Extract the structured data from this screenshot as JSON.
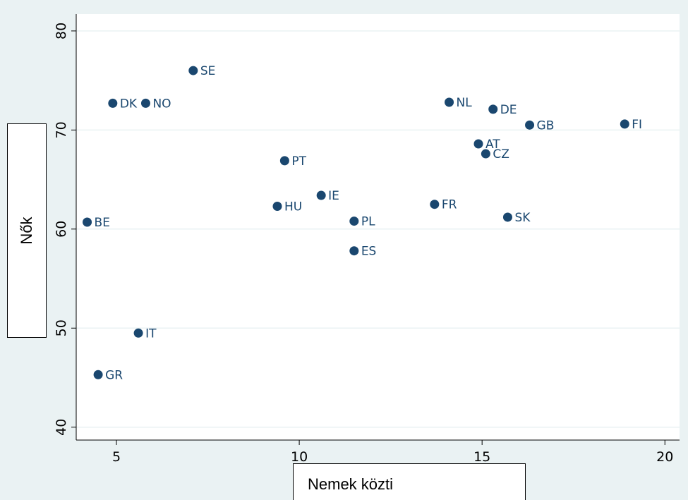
{
  "chart_data": {
    "type": "scatter",
    "xlabel": "Nemek közti",
    "ylabel": "Nők",
    "xlim": [
      3.9,
      20.4
    ],
    "ylim": [
      38.7,
      81.7
    ],
    "xticks": [
      5,
      10,
      15,
      20
    ],
    "yticks": [
      40,
      50,
      60,
      70,
      80
    ],
    "grid": true,
    "colors": {
      "outer_background": "#eaf2f3",
      "plot_background": "#ffffff",
      "gridline": "#eaf2f3",
      "marker": "#1a476f",
      "text": "#000000"
    },
    "points": [
      {
        "label": "SE",
        "x": 7.1,
        "y": 76.0
      },
      {
        "label": "DK",
        "x": 4.9,
        "y": 72.7
      },
      {
        "label": "NO",
        "x": 5.8,
        "y": 72.7
      },
      {
        "label": "NL",
        "x": 14.1,
        "y": 72.8
      },
      {
        "label": "DE",
        "x": 15.3,
        "y": 72.1
      },
      {
        "label": "GB",
        "x": 16.3,
        "y": 70.5
      },
      {
        "label": "FI",
        "x": 18.9,
        "y": 70.6
      },
      {
        "label": "AT",
        "x": 14.9,
        "y": 68.6
      },
      {
        "label": "CZ",
        "x": 15.1,
        "y": 67.6
      },
      {
        "label": "PT",
        "x": 9.6,
        "y": 66.9
      },
      {
        "label": "IE",
        "x": 10.6,
        "y": 63.4
      },
      {
        "label": "FR",
        "x": 13.7,
        "y": 62.5
      },
      {
        "label": "HU",
        "x": 9.4,
        "y": 62.3
      },
      {
        "label": "SK",
        "x": 15.7,
        "y": 61.2
      },
      {
        "label": "BE",
        "x": 4.2,
        "y": 60.7
      },
      {
        "label": "PL",
        "x": 11.5,
        "y": 60.8
      },
      {
        "label": "ES",
        "x": 11.5,
        "y": 57.8
      },
      {
        "label": "IT",
        "x": 5.6,
        "y": 49.5
      },
      {
        "label": "GR",
        "x": 4.5,
        "y": 45.3
      }
    ]
  }
}
